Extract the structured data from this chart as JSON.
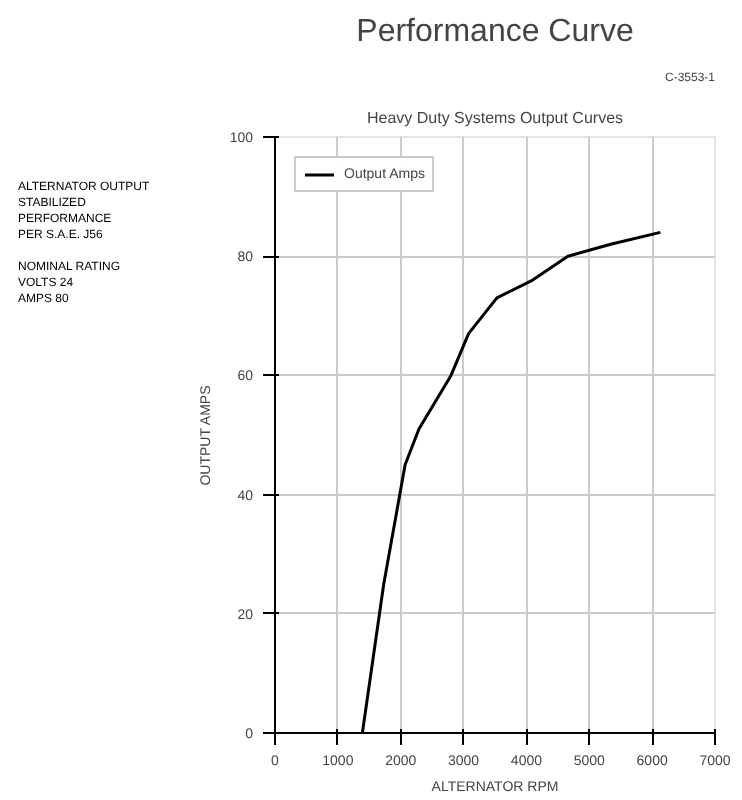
{
  "chart_data": {
    "type": "line",
    "title": "Performance Curve",
    "subtitle": "Heavy Duty Systems Output Curves",
    "xlabel": "ALTERNATOR RPM",
    "ylabel": "OUTPUT AMPS",
    "annotations": [
      "ALTERNATOR OUTPUT",
      "STABILIZED PERFORMANCE",
      "PER S.A.E. J56",
      "NOMINAL RATING",
      "VOLTS 24",
      "AMPS 80",
      "C-3553-1"
    ],
    "series": [
      {
        "name": "Output Amps",
        "color": "#000000",
        "x": [
          1390,
          1730,
          2070,
          2290,
          2800,
          3080,
          3530,
          4100,
          4660,
          5340,
          6130
        ],
        "values": [
          0,
          25,
          45,
          51,
          60,
          67,
          73,
          76,
          80,
          82,
          84
        ]
      }
    ],
    "xlim": [
      0,
      7000
    ],
    "xticks": [
      0,
      1000,
      2000,
      3000,
      4000,
      5000,
      6000,
      7000
    ],
    "ylim": [
      0,
      100
    ],
    "yticks": [
      0,
      20,
      40,
      60,
      80,
      100
    ],
    "grid": true,
    "legend": "top left",
    "marker": "none",
    "line_style": "solid"
  }
}
